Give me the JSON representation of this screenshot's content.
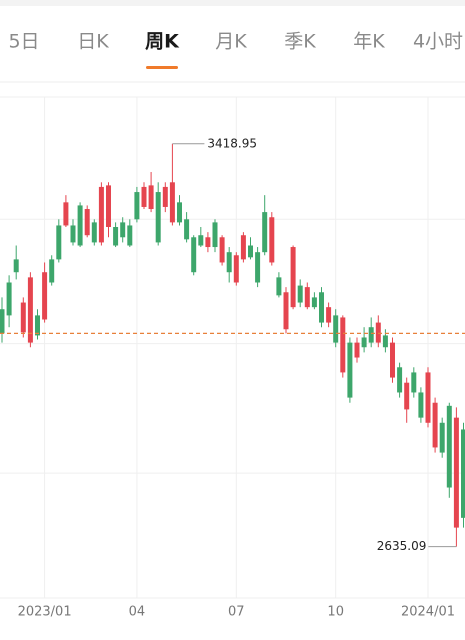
{
  "tabs": {
    "items": [
      "5日",
      "日K",
      "周K",
      "月K",
      "季K",
      "年K",
      "4小时"
    ],
    "selected": 2
  },
  "chart_data": {
    "type": "candlestick",
    "categories": [
      null,
      null,
      null,
      null,
      null,
      null,
      "2023/01",
      null,
      null,
      null,
      null,
      null,
      null,
      null,
      null,
      null,
      null,
      null,
      null,
      "04",
      null,
      null,
      null,
      null,
      null,
      null,
      null,
      null,
      null,
      null,
      null,
      null,
      null,
      "07",
      null,
      null,
      null,
      null,
      null,
      null,
      null,
      null,
      null,
      null,
      null,
      null,
      null,
      "10",
      null,
      null,
      null,
      null,
      null,
      null,
      null,
      null,
      null,
      null,
      null,
      null,
      "2024/01",
      null,
      null,
      null,
      null,
      null
    ],
    "open": [
      3097,
      3149,
      3194,
      3052,
      3032,
      3085,
      3077,
      3194,
      3260,
      3260,
      3260,
      3299,
      3241,
      3266,
      3227,
      3257,
      3257,
      3266,
      3260,
      3325,
      3296,
      3292,
      3325,
      3296,
      3266,
      3305,
      3272,
      3237,
      3241,
      3218,
      3266,
      3188,
      3208,
      3149,
      3194,
      3221,
      3208,
      3286,
      3188,
      3159,
      3058,
      3101,
      3143,
      3101,
      3120,
      3130,
      3071,
      3085,
      2974,
      3032,
      3003,
      3042,
      3062,
      3032,
      3046,
      2964,
      2984,
      2902,
      2974,
      2935,
      2876,
      2828,
      2876,
      2909,
      2672,
      2863
    ],
    "high": [
      3120,
      3163,
      3221,
      3120,
      3169,
      3097,
      3188,
      3202,
      3272,
      3319,
      3272,
      3305,
      3299,
      3272,
      3344,
      3344,
      3266,
      3276,
      3272,
      3335,
      3344,
      3364,
      3344,
      3344,
      3418.95,
      3319,
      3286,
      3241,
      3257,
      3247,
      3272,
      3241,
      3218,
      3208,
      3247,
      3237,
      3218,
      3319,
      3286,
      3169,
      3140,
      3221,
      3155,
      3149,
      3130,
      3140,
      3110,
      3097,
      3085,
      3042,
      3042,
      3062,
      3081,
      3085,
      3058,
      3042,
      2993,
      2964,
      2984,
      2945,
      2984,
      2925,
      2886,
      2915,
      2906,
      2876
    ],
    "low": [
      3032,
      3062,
      3155,
      3042,
      3023,
      3038,
      3071,
      3143,
      3188,
      3257,
      3221,
      3218,
      3237,
      3221,
      3221,
      3237,
      3218,
      3227,
      3218,
      3266,
      3292,
      3286,
      3221,
      3286,
      3260,
      3260,
      3227,
      3163,
      3218,
      3208,
      3208,
      3182,
      3149,
      3143,
      3188,
      3194,
      3140,
      3202,
      3182,
      3120,
      3050,
      3097,
      3101,
      3097,
      3097,
      3062,
      3062,
      3023,
      2964,
      2915,
      2993,
      3013,
      3023,
      3023,
      3013,
      2954,
      2925,
      2876,
      2925,
      2876,
      2867,
      2818,
      2808,
      2730,
      2635.09,
      2672
    ],
    "close": [
      3050,
      3085,
      3169,
      3110,
      3159,
      3046,
      3169,
      3149,
      3194,
      3305,
      3227,
      3221,
      3292,
      3227,
      3335,
      3338,
      3221,
      3237,
      3221,
      3272,
      3335,
      3338,
      3227,
      3335,
      3344,
      3266,
      3233,
      3169,
      3221,
      3237,
      3218,
      3237,
      3169,
      3202,
      3241,
      3198,
      3149,
      3208,
      3276,
      3124,
      3130,
      3218,
      3110,
      3140,
      3101,
      3071,
      3101,
      3032,
      3081,
      2925,
      3032,
      3023,
      3032,
      3071,
      3023,
      3032,
      2935,
      2954,
      2935,
      2886,
      2974,
      2915,
      2818,
      2750,
      2886,
      2691
    ],
    "up_color": "#e5454f",
    "down_color": "#3da66b",
    "ylim": [
      2535,
      3510
    ],
    "grid_levels": [
      3272,
      3030,
      2778
    ],
    "reference_line": 3050,
    "reference_color": "#e8803a"
  }
}
